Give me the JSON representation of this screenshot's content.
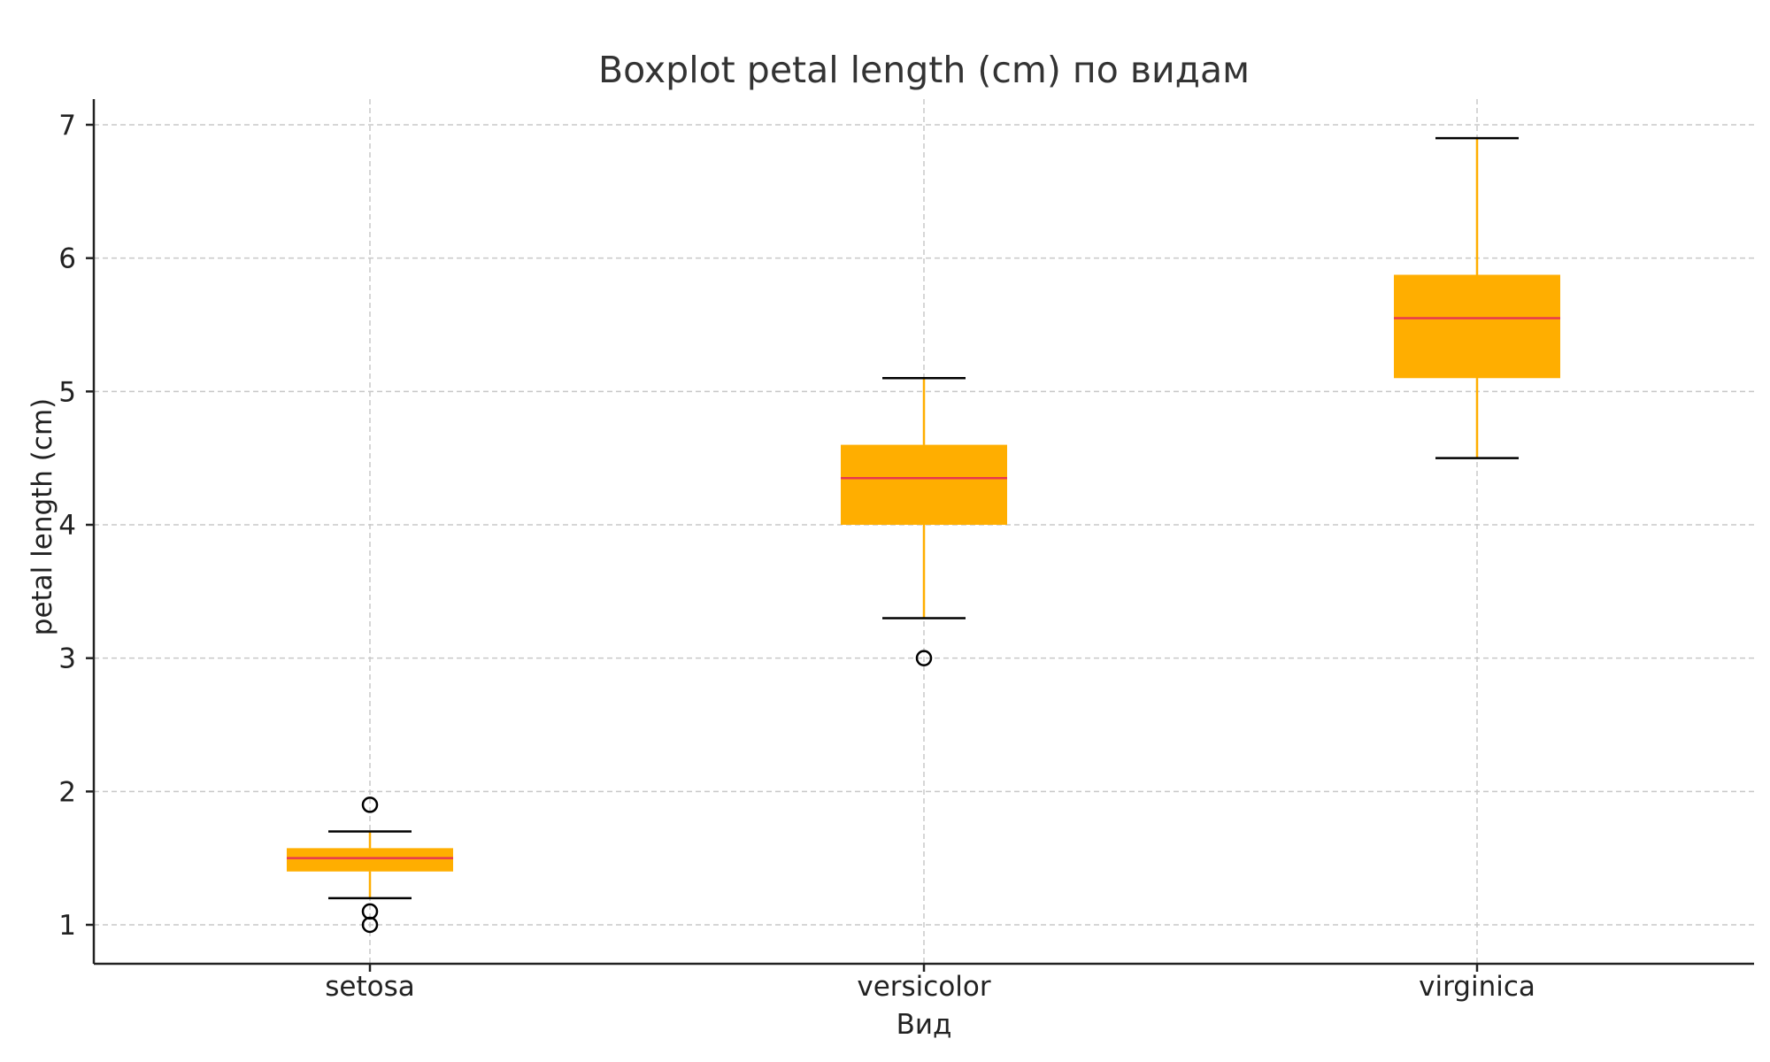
{
  "chart_data": {
    "type": "boxplot",
    "title": "Boxplot petal length (cm) по видам",
    "xlabel": "Вид",
    "ylabel": "petal length (cm)",
    "ylim": [
      0.7,
      7.2
    ],
    "yticks": [
      1,
      2,
      3,
      4,
      5,
      6,
      7
    ],
    "grid": true,
    "categories": [
      "setosa",
      "versicolor",
      "virginica"
    ],
    "series": [
      {
        "category": "setosa",
        "whisker_low": 1.2,
        "q1": 1.4,
        "median": 1.5,
        "q3": 1.575,
        "whisker_high": 1.7,
        "outliers": [
          1.0,
          1.1,
          1.9
        ]
      },
      {
        "category": "versicolor",
        "whisker_low": 3.3,
        "q1": 4.0,
        "median": 4.35,
        "q3": 4.6,
        "whisker_high": 5.1,
        "outliers": [
          3.0
        ]
      },
      {
        "category": "virginica",
        "whisker_low": 4.5,
        "q1": 5.1,
        "median": 5.55,
        "q3": 5.875,
        "whisker_high": 6.9,
        "outliers": []
      }
    ],
    "colors": {
      "box": "#ffae00",
      "median": "#e8384f",
      "whisker": "#ffae00",
      "cap": "#000000",
      "outlier": "#000000"
    }
  }
}
